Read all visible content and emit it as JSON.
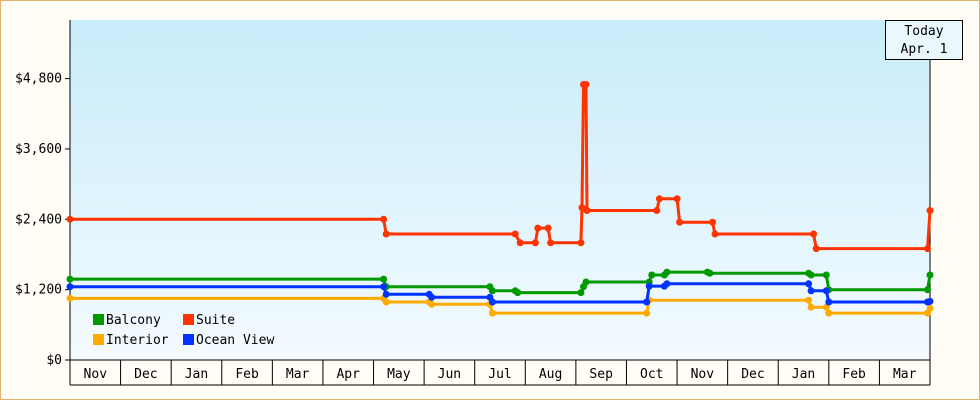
{
  "chart_data": {
    "type": "line",
    "title": "",
    "xlabel": "",
    "ylabel": "",
    "ylim": [
      0,
      5800
    ],
    "y_ticks": [
      0,
      1200,
      2400,
      3600,
      4800
    ],
    "y_tick_labels": [
      "$0",
      "$1,200",
      "$2,400",
      "$3,600",
      "$4,800"
    ],
    "x_tick_labels": [
      "Nov",
      "Dec",
      "Jan",
      "Feb",
      "Mar",
      "Apr",
      "May",
      "Jun",
      "Jul",
      "Aug",
      "Sep",
      "Oct",
      "Nov",
      "Dec",
      "Jan",
      "Feb",
      "Mar"
    ],
    "x_range_months": [
      0,
      17
    ],
    "grid": false,
    "legend_placement": "bottom-left",
    "today": {
      "line1": "Today",
      "line2": "Apr. 1"
    },
    "series": [
      {
        "name": "Suite",
        "color": "#ff3300",
        "points": [
          [
            0,
            2400
          ],
          [
            6.2,
            2400
          ],
          [
            6.25,
            2150
          ],
          [
            8.8,
            2150
          ],
          [
            8.9,
            2000
          ],
          [
            9.2,
            2000
          ],
          [
            9.25,
            2250
          ],
          [
            9.45,
            2250
          ],
          [
            9.5,
            2000
          ],
          [
            10.1,
            2000
          ],
          [
            10.12,
            2600
          ],
          [
            10.15,
            4700
          ],
          [
            10.2,
            4700
          ],
          [
            10.22,
            2550
          ],
          [
            11.6,
            2550
          ],
          [
            11.65,
            2750
          ],
          [
            12.0,
            2750
          ],
          [
            12.05,
            2350
          ],
          [
            12.7,
            2350
          ],
          [
            12.75,
            2150
          ],
          [
            14.7,
            2150
          ],
          [
            14.75,
            1900
          ],
          [
            16.95,
            1900
          ],
          [
            17.0,
            2550
          ]
        ]
      },
      {
        "name": "Balcony",
        "color": "#009900",
        "points": [
          [
            0,
            1380
          ],
          [
            6.2,
            1380
          ],
          [
            6.25,
            1250
          ],
          [
            8.3,
            1250
          ],
          [
            8.35,
            1180
          ],
          [
            8.8,
            1180
          ],
          [
            8.85,
            1150
          ],
          [
            10.1,
            1150
          ],
          [
            10.15,
            1250
          ],
          [
            10.2,
            1330
          ],
          [
            11.45,
            1330
          ],
          [
            11.5,
            1450
          ],
          [
            11.75,
            1450
          ],
          [
            11.8,
            1500
          ],
          [
            12.6,
            1500
          ],
          [
            12.65,
            1480
          ],
          [
            14.6,
            1480
          ],
          [
            14.65,
            1450
          ],
          [
            14.95,
            1450
          ],
          [
            15.0,
            1200
          ],
          [
            16.95,
            1200
          ],
          [
            17.0,
            1450
          ]
        ]
      },
      {
        "name": "Interior",
        "color": "#ffaa00",
        "points": [
          [
            0,
            1050
          ],
          [
            6.2,
            1050
          ],
          [
            6.25,
            990
          ],
          [
            7.1,
            990
          ],
          [
            7.15,
            950
          ],
          [
            8.3,
            950
          ],
          [
            8.35,
            800
          ],
          [
            11.4,
            800
          ],
          [
            11.45,
            1020
          ],
          [
            14.6,
            1020
          ],
          [
            14.65,
            900
          ],
          [
            14.95,
            900
          ],
          [
            15.0,
            800
          ],
          [
            16.95,
            800
          ],
          [
            17.0,
            880
          ]
        ]
      },
      {
        "name": "Ocean View",
        "color": "#0033ff",
        "points": [
          [
            0,
            1250
          ],
          [
            6.2,
            1250
          ],
          [
            6.25,
            1120
          ],
          [
            7.1,
            1120
          ],
          [
            7.15,
            1070
          ],
          [
            8.3,
            1070
          ],
          [
            8.35,
            990
          ],
          [
            11.4,
            990
          ],
          [
            11.45,
            1260
          ],
          [
            11.75,
            1260
          ],
          [
            11.8,
            1300
          ],
          [
            14.6,
            1300
          ],
          [
            14.65,
            1180
          ],
          [
            14.95,
            1180
          ],
          [
            15.0,
            990
          ],
          [
            16.95,
            990
          ],
          [
            17.0,
            1000
          ]
        ]
      }
    ],
    "legend": [
      {
        "name": "Balcony",
        "color": "#009900"
      },
      {
        "name": "Suite",
        "color": "#ff3300"
      },
      {
        "name": "Interior",
        "color": "#ffaa00"
      },
      {
        "name": "Ocean View",
        "color": "#0033ff"
      }
    ]
  }
}
